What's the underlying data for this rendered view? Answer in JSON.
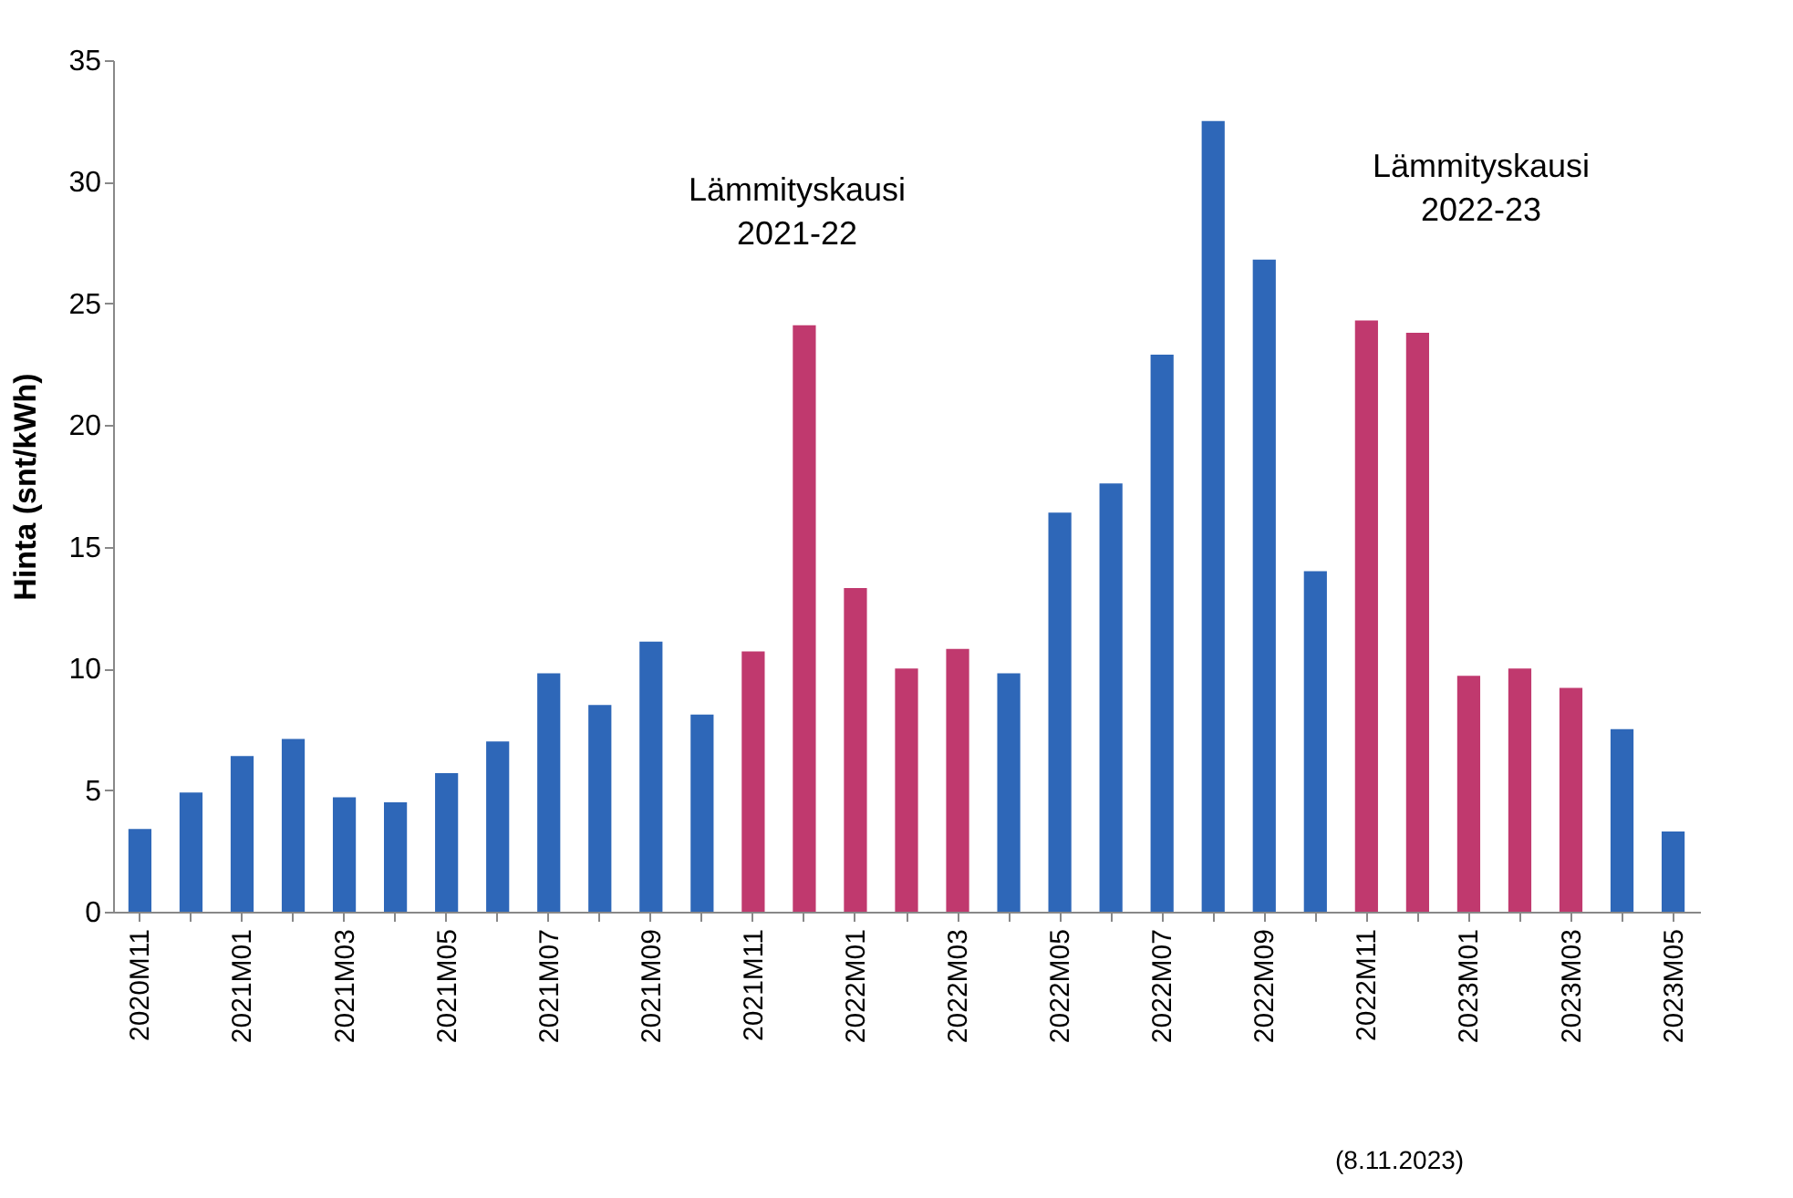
{
  "chart_data": {
    "type": "bar",
    "ylabel": "Hinta (snt/kWh)",
    "categories": [
      "2020M11",
      null,
      "2021M01",
      null,
      "2021M03",
      null,
      "2021M05",
      null,
      "2021M07",
      null,
      "2021M09",
      null,
      "2021M11",
      null,
      "2022M01",
      null,
      "2022M03",
      null,
      "2022M05",
      null,
      "2022M07",
      null,
      "2022M09",
      null,
      "2022M11",
      null,
      "2023M01",
      null,
      "2023M03",
      null,
      "2023M05"
    ],
    "values": [
      3.4,
      4.9,
      6.4,
      7.1,
      4.7,
      4.5,
      5.7,
      7.0,
      9.8,
      8.5,
      11.1,
      8.1,
      10.7,
      24.1,
      13.3,
      10.0,
      10.8,
      9.8,
      16.4,
      17.6,
      22.9,
      32.5,
      26.8,
      14.0,
      24.3,
      23.8,
      9.7,
      10.0,
      9.2,
      7.5,
      3.3
    ],
    "colors": [
      "#2e67b8",
      "#2e67b8",
      "#2e67b8",
      "#2e67b8",
      "#2e67b8",
      "#2e67b8",
      "#2e67b8",
      "#2e67b8",
      "#2e67b8",
      "#2e67b8",
      "#2e67b8",
      "#2e67b8",
      "#c0396e",
      "#c0396e",
      "#c0396e",
      "#c0396e",
      "#c0396e",
      "#2e67b8",
      "#2e67b8",
      "#2e67b8",
      "#2e67b8",
      "#2e67b8",
      "#2e67b8",
      "#2e67b8",
      "#c0396e",
      "#c0396e",
      "#c0396e",
      "#c0396e",
      "#c0396e",
      "#2e67b8",
      "#2e67b8"
    ],
    "ylim": [
      0,
      35
    ],
    "yticks": [
      0,
      5,
      10,
      15,
      20,
      25,
      30,
      35
    ],
    "grid": false,
    "annotations": [
      "Lämmityskausi 2021-22",
      "Lämmityskausi 2022-23",
      "(8.11.2023)"
    ]
  }
}
